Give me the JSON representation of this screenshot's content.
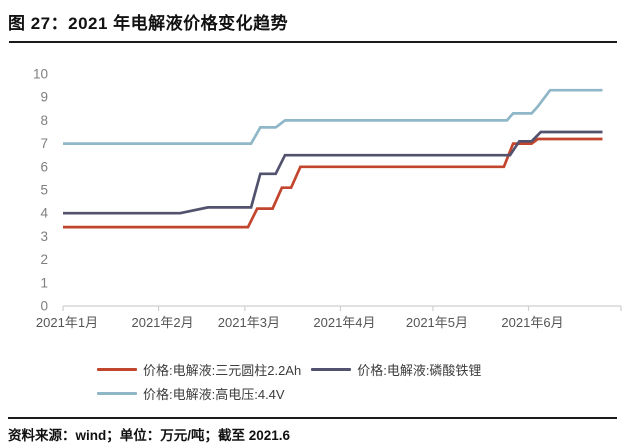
{
  "header": {
    "title": "图 27：2021 年电解液价格变化趋势"
  },
  "footer": {
    "source_note": "资料来源：wind；单位：万元/吨；截至 2021.6"
  },
  "colors": {
    "axis": "#cfcfcf",
    "y_label": "#7f7f7f",
    "x_label": "#555555",
    "title_text": "#111111",
    "rule_line": "#1a1a1a"
  },
  "chart_data": {
    "type": "line",
    "title": "2021 年电解液价格变化趋势",
    "unit": "万元/吨",
    "grid": false,
    "legend_position": "bottom",
    "y_axis": {
      "min": 0,
      "max": 10,
      "step": 1,
      "ticks": [
        0,
        1,
        2,
        3,
        4,
        5,
        6,
        7,
        8,
        9,
        10
      ]
    },
    "x_axis": {
      "end_day": 181,
      "tick_days": [
        0,
        31,
        59,
        90,
        120,
        151,
        181
      ],
      "months": [
        {
          "label": "2021年1月",
          "day": 0
        },
        {
          "label": "2021年2月",
          "day": 31
        },
        {
          "label": "2021年3月",
          "day": 59
        },
        {
          "label": "2021年4月",
          "day": 90
        },
        {
          "label": "2021年5月",
          "day": 120
        },
        {
          "label": "2021年6月",
          "day": 151
        }
      ]
    },
    "series": [
      {
        "name": "价格:电解液:三元圆柱2.2Ah",
        "color": "#c2452d",
        "points": [
          [
            0,
            3.4
          ],
          [
            60,
            3.4
          ],
          [
            63,
            4.2
          ],
          [
            68,
            4.2
          ],
          [
            71,
            5.1
          ],
          [
            74,
            5.1
          ],
          [
            77,
            6.0
          ],
          [
            143,
            6.0
          ],
          [
            146,
            7.0
          ],
          [
            152,
            7.0
          ],
          [
            154,
            7.2
          ],
          [
            175,
            7.2
          ]
        ]
      },
      {
        "name": "价格:电解液:磷酸铁锂",
        "color": "#52526e",
        "points": [
          [
            0,
            4.0
          ],
          [
            38,
            4.0
          ],
          [
            47,
            4.25
          ],
          [
            61,
            4.25
          ],
          [
            64,
            5.7
          ],
          [
            69,
            5.7
          ],
          [
            72,
            6.5
          ],
          [
            145,
            6.5
          ],
          [
            148,
            7.1
          ],
          [
            152,
            7.1
          ],
          [
            155,
            7.5
          ],
          [
            175,
            7.5
          ]
        ]
      },
      {
        "name": "价格:电解液:高电压:4.4V",
        "color": "#90b7c7",
        "points": [
          [
            0,
            7.0
          ],
          [
            61,
            7.0
          ],
          [
            64,
            7.7
          ],
          [
            69,
            7.7
          ],
          [
            72,
            8.0
          ],
          [
            144,
            8.0
          ],
          [
            146,
            8.3
          ],
          [
            152,
            8.3
          ],
          [
            154,
            8.6
          ],
          [
            158,
            9.3
          ],
          [
            175,
            9.3
          ]
        ]
      }
    ]
  }
}
